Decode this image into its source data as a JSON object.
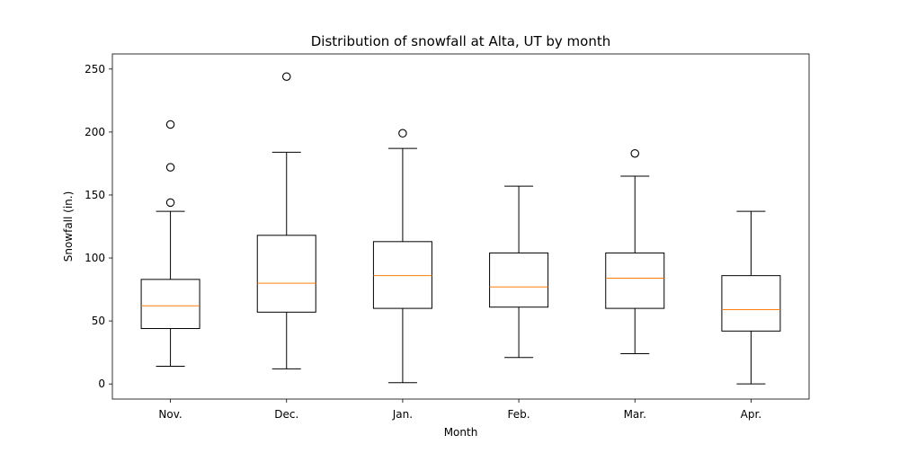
{
  "chart_data": {
    "type": "boxplot",
    "title": "Distribution of snowfall at Alta, UT by month",
    "xlabel": "Month",
    "ylabel": "Snowfall (in.)",
    "ylim": [
      -12,
      262
    ],
    "yticks": [
      0,
      50,
      100,
      150,
      200,
      250
    ],
    "grid": false,
    "categories": [
      "Nov.",
      "Dec.",
      "Jan.",
      "Feb.",
      "Mar.",
      "Apr."
    ],
    "boxes": [
      {
        "category": "Nov.",
        "whisker_low": 14,
        "q1": 44,
        "median": 62,
        "q3": 83,
        "whisker_high": 137,
        "outliers": [
          144,
          172,
          206
        ]
      },
      {
        "category": "Dec.",
        "whisker_low": 12,
        "q1": 57,
        "median": 80,
        "q3": 118,
        "whisker_high": 184,
        "outliers": [
          244
        ]
      },
      {
        "category": "Jan.",
        "whisker_low": 1,
        "q1": 60,
        "median": 86,
        "q3": 113,
        "whisker_high": 187,
        "outliers": [
          199
        ]
      },
      {
        "category": "Feb.",
        "whisker_low": 21,
        "q1": 61,
        "median": 77,
        "q3": 104,
        "whisker_high": 157,
        "outliers": []
      },
      {
        "category": "Mar.",
        "whisker_low": 24,
        "q1": 60,
        "median": 84,
        "q3": 104,
        "whisker_high": 165,
        "outliers": [
          183
        ]
      },
      {
        "category": "Apr.",
        "whisker_low": 0,
        "q1": 42,
        "median": 59,
        "q3": 86,
        "whisker_high": 137,
        "outliers": []
      }
    ],
    "colors": {
      "box": "#000000",
      "median": "#ff7f0e",
      "outlier": "#000000"
    }
  }
}
